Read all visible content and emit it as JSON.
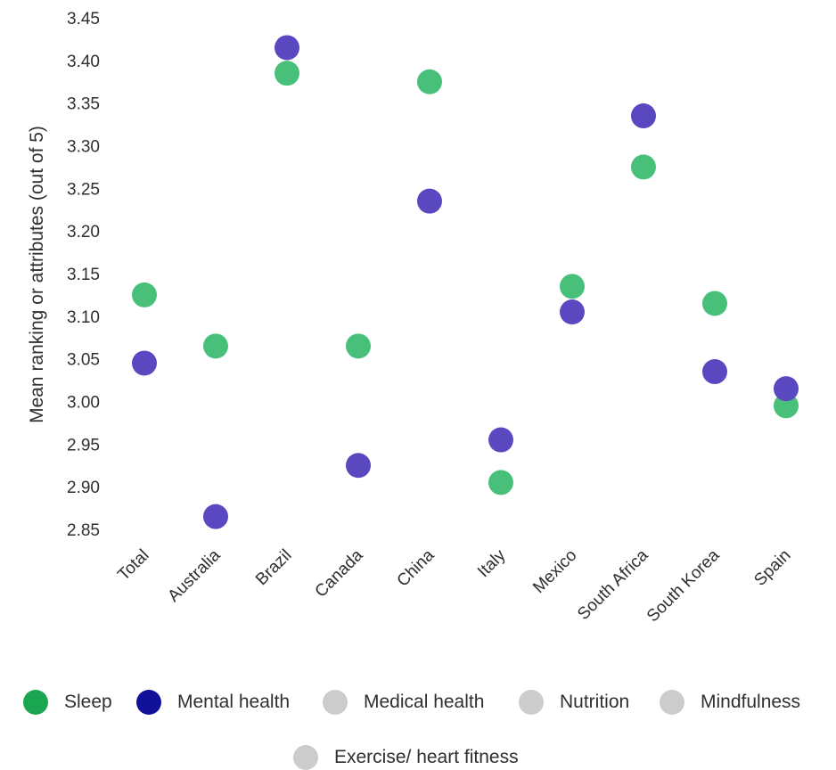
{
  "chart_data": {
    "type": "scatter",
    "title": "",
    "xlabel": "",
    "ylabel": "Mean ranking or attributes (out of 5)",
    "ylim": [
      2.85,
      3.45
    ],
    "ytick_step": 0.05,
    "grid": false,
    "legend_position": "bottom",
    "categories": [
      "Total",
      "Australia",
      "Brazil",
      "Canada",
      "China",
      "Italy",
      "Mexico",
      "South Africa",
      "South Korea",
      "Spain"
    ],
    "series": [
      {
        "name": "Sleep",
        "legend_color": "#1aa650",
        "point_color": "#48c07a",
        "values": [
          3.125,
          3.065,
          3.385,
          3.065,
          3.375,
          2.905,
          3.135,
          3.275,
          3.115,
          2.995
        ]
      },
      {
        "name": "Mental health",
        "legend_color": "#101099",
        "point_color": "#5a48c0",
        "values": [
          3.045,
          2.865,
          3.415,
          2.925,
          3.235,
          2.955,
          3.105,
          3.335,
          3.035,
          3.015
        ]
      }
    ],
    "legend": [
      {
        "name": "Sleep",
        "color": "#1aa650"
      },
      {
        "name": "Mental health",
        "color": "#101099"
      },
      {
        "name": "Medical health",
        "color": "#cccccc"
      },
      {
        "name": "Nutrition",
        "color": "#cccccc"
      },
      {
        "name": "Mindfulness",
        "color": "#cccccc"
      },
      {
        "name": "Exercise/ heart fitness",
        "color": "#cccccc"
      }
    ]
  }
}
